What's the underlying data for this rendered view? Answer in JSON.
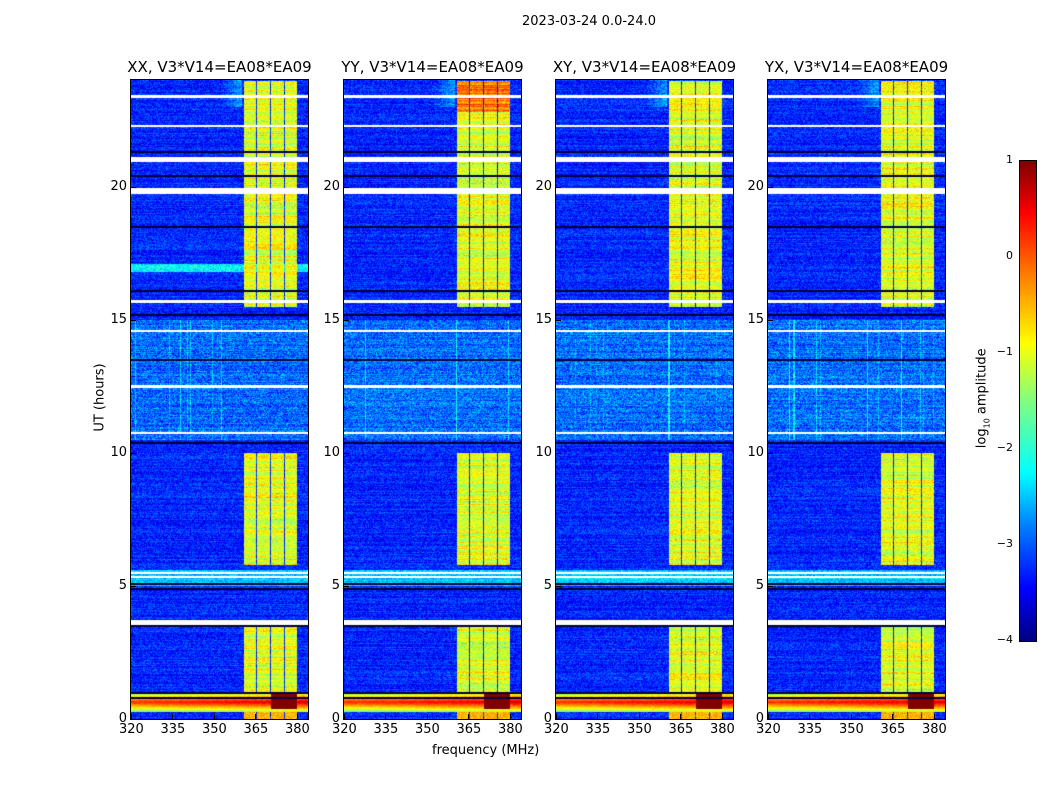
{
  "chart_data": {
    "type": "heatmap",
    "title": "2023-03-24 0.0-24.0",
    "xlabel": "frequency (MHz)",
    "ylabel": "UT (hours)",
    "xlim": [
      320,
      384
    ],
    "ylim": [
      0,
      24
    ],
    "xticks": [
      "320",
      "335",
      "350",
      "365",
      "380"
    ],
    "yticks": [
      "0",
      "5",
      "10",
      "15",
      "20"
    ],
    "panels": [
      {
        "title": "XX, V3*V14=EA08*EA09"
      },
      {
        "title": "YY, V3*V14=EA08*EA09"
      },
      {
        "title": "XY, V3*V14=EA08*EA09"
      },
      {
        "title": "YX, V3*V14=EA08*EA09"
      }
    ],
    "colorbar": {
      "label_prefix": "log",
      "label_sub": "10",
      "label_suffix": " amplitude",
      "clim": [
        -4,
        1
      ],
      "ticks": [
        "1",
        "0",
        "−1",
        "−2",
        "−3",
        "−4"
      ],
      "colormap": "jet"
    },
    "features": {
      "background_log_amp": -3.2,
      "rfi_subbands_mhz": [
        [
          360.5,
          365
        ],
        [
          365.5,
          370
        ],
        [
          370.5,
          375
        ],
        [
          375.5,
          380
        ]
      ],
      "rfi_time_ranges_h": [
        [
          1.0,
          3.5
        ],
        [
          5.8,
          10.0
        ],
        [
          15.5,
          24.0
        ]
      ],
      "rfi_log_amp": -1.0,
      "noisy_time_range_h": [
        10.5,
        15.0
      ],
      "strong_band_time_h": [
        0.3,
        1.0
      ],
      "flagged_times_h": [
        3.6,
        3.7,
        5.35,
        5.5,
        10.75,
        12.5,
        14.6,
        15.7,
        19.8,
        19.9,
        21.0,
        21.1,
        22.3,
        23.4
      ],
      "dark_times_h": [
        0.8,
        1.0,
        3.5,
        4.9,
        5.1,
        10.4,
        13.5,
        15.2,
        16.1,
        18.5,
        20.4,
        21.3
      ]
    }
  }
}
